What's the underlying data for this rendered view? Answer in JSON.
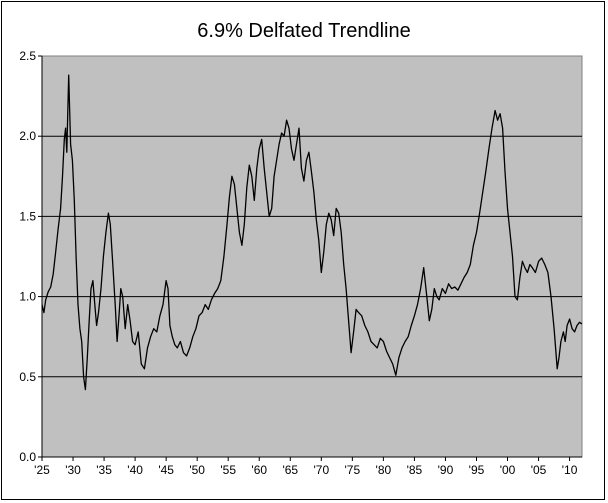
{
  "chart_data": {
    "type": "line",
    "title": "6.9% Delfated Trendline",
    "xlabel": "",
    "ylabel": "",
    "ylim": [
      0.0,
      2.5
    ],
    "xlim": [
      1925,
      2012
    ],
    "y_ticks": [
      "0.0",
      "0.5",
      "1.0",
      "1.5",
      "2.0",
      "2.5"
    ],
    "x_ticks": [
      "'25",
      "'30",
      "'35",
      "'40",
      "'45",
      "'50",
      "'55",
      "'60",
      "'65",
      "'70",
      "'75",
      "'80",
      "'85",
      "'90",
      "'95",
      "'00",
      "'05",
      "'10"
    ],
    "grid": "horizontal",
    "legend": "none",
    "plot_background": "#c0c0c0",
    "line_color": "#000000",
    "series": [
      {
        "x": [
          1925.0,
          1925.3,
          1925.6,
          1926.0,
          1926.4,
          1926.8,
          1927.2,
          1927.6,
          1928.0,
          1928.3,
          1928.6,
          1928.8,
          1929.0,
          1929.3,
          1929.6,
          1929.9,
          1930.2,
          1930.5,
          1930.8,
          1931.1,
          1931.4,
          1931.7,
          1932.0,
          1932.3,
          1932.6,
          1932.9,
          1933.2,
          1933.5,
          1933.8,
          1934.1,
          1934.5,
          1934.9,
          1935.3,
          1935.7,
          1936.0,
          1936.4,
          1936.8,
          1937.1,
          1937.4,
          1937.7,
          1938.0,
          1938.4,
          1938.8,
          1939.2,
          1939.6,
          1940.0,
          1940.5,
          1941.0,
          1941.5,
          1942.0,
          1942.5,
          1943.0,
          1943.5,
          1944.0,
          1944.5,
          1945.0,
          1945.3,
          1945.6,
          1946.0,
          1946.4,
          1946.8,
          1947.3,
          1947.8,
          1948.3,
          1948.8,
          1949.3,
          1949.8,
          1950.3,
          1950.8,
          1951.3,
          1951.8,
          1952.3,
          1952.8,
          1953.3,
          1953.8,
          1954.3,
          1954.8,
          1955.2,
          1955.6,
          1956.0,
          1956.4,
          1956.8,
          1957.2,
          1957.6,
          1958.0,
          1958.4,
          1958.8,
          1959.2,
          1959.6,
          1960.0,
          1960.4,
          1960.8,
          1961.2,
          1961.6,
          1962.0,
          1962.4,
          1962.8,
          1963.2,
          1963.6,
          1964.0,
          1964.4,
          1964.8,
          1965.2,
          1965.6,
          1966.0,
          1966.4,
          1966.8,
          1967.2,
          1967.6,
          1968.0,
          1968.4,
          1968.8,
          1969.2,
          1969.6,
          1970.0,
          1970.4,
          1970.8,
          1971.2,
          1971.6,
          1972.0,
          1972.4,
          1972.8,
          1973.2,
          1973.6,
          1974.0,
          1974.4,
          1974.8,
          1975.2,
          1975.6,
          1976.0,
          1976.5,
          1977.0,
          1977.5,
          1978.0,
          1978.5,
          1979.0,
          1979.5,
          1980.0,
          1980.5,
          1981.0,
          1981.5,
          1982.0,
          1982.5,
          1983.0,
          1983.5,
          1984.0,
          1984.5,
          1985.0,
          1985.5,
          1986.0,
          1986.5,
          1987.0,
          1987.4,
          1987.8,
          1988.2,
          1988.6,
          1989.0,
          1989.5,
          1990.0,
          1990.5,
          1991.0,
          1991.5,
          1992.0,
          1992.5,
          1993.0,
          1993.5,
          1994.0,
          1994.5,
          1995.0,
          1995.5,
          1996.0,
          1996.5,
          1997.0,
          1997.5,
          1998.0,
          1998.4,
          1998.8,
          1999.2,
          1999.6,
          2000.0,
          2000.4,
          2000.8,
          2001.2,
          2001.6,
          2002.0,
          2002.4,
          2002.8,
          2003.2,
          2003.6,
          2004.0,
          2004.5,
          2005.0,
          2005.5,
          2006.0,
          2006.5,
          2007.0,
          2007.5,
          2008.0,
          2008.3,
          2008.6,
          2009.0,
          2009.3,
          2009.6,
          2010.0,
          2010.4,
          2010.8,
          2011.2,
          2011.6,
          2012.0
        ],
        "y": [
          0.95,
          0.9,
          0.98,
          1.03,
          1.06,
          1.14,
          1.28,
          1.42,
          1.55,
          1.75,
          1.98,
          2.05,
          1.9,
          2.38,
          1.95,
          1.85,
          1.6,
          1.25,
          0.95,
          0.8,
          0.72,
          0.5,
          0.42,
          0.62,
          0.85,
          1.05,
          1.1,
          0.95,
          0.82,
          0.9,
          1.05,
          1.25,
          1.4,
          1.52,
          1.45,
          1.2,
          0.95,
          0.72,
          0.88,
          1.05,
          1.0,
          0.8,
          0.95,
          0.85,
          0.72,
          0.7,
          0.78,
          0.58,
          0.55,
          0.68,
          0.75,
          0.8,
          0.78,
          0.88,
          0.95,
          1.1,
          1.05,
          0.82,
          0.75,
          0.7,
          0.68,
          0.72,
          0.65,
          0.63,
          0.68,
          0.75,
          0.8,
          0.88,
          0.9,
          0.95,
          0.92,
          0.98,
          1.02,
          1.05,
          1.1,
          1.25,
          1.45,
          1.62,
          1.75,
          1.7,
          1.55,
          1.4,
          1.32,
          1.45,
          1.68,
          1.82,
          1.75,
          1.6,
          1.8,
          1.92,
          1.98,
          1.8,
          1.65,
          1.5,
          1.55,
          1.75,
          1.85,
          1.95,
          2.02,
          2.0,
          2.1,
          2.05,
          1.92,
          1.85,
          1.95,
          2.05,
          1.8,
          1.72,
          1.85,
          1.9,
          1.78,
          1.65,
          1.48,
          1.35,
          1.15,
          1.28,
          1.45,
          1.52,
          1.48,
          1.38,
          1.55,
          1.52,
          1.4,
          1.2,
          1.05,
          0.85,
          0.65,
          0.78,
          0.92,
          0.9,
          0.88,
          0.82,
          0.78,
          0.72,
          0.7,
          0.68,
          0.74,
          0.72,
          0.66,
          0.62,
          0.58,
          0.51,
          0.62,
          0.68,
          0.72,
          0.75,
          0.82,
          0.88,
          0.95,
          1.05,
          1.18,
          1.0,
          0.85,
          0.92,
          1.05,
          1.0,
          0.98,
          1.05,
          1.02,
          1.08,
          1.05,
          1.06,
          1.04,
          1.08,
          1.12,
          1.15,
          1.2,
          1.32,
          1.4,
          1.52,
          1.65,
          1.78,
          1.92,
          2.05,
          2.16,
          2.1,
          2.14,
          2.05,
          1.78,
          1.55,
          1.4,
          1.25,
          1.0,
          0.98,
          1.12,
          1.22,
          1.18,
          1.15,
          1.2,
          1.18,
          1.15,
          1.22,
          1.24,
          1.2,
          1.15,
          1.0,
          0.8,
          0.55,
          0.62,
          0.72,
          0.78,
          0.72,
          0.82,
          0.86,
          0.8,
          0.78,
          0.82,
          0.84,
          0.83
        ]
      }
    ]
  }
}
